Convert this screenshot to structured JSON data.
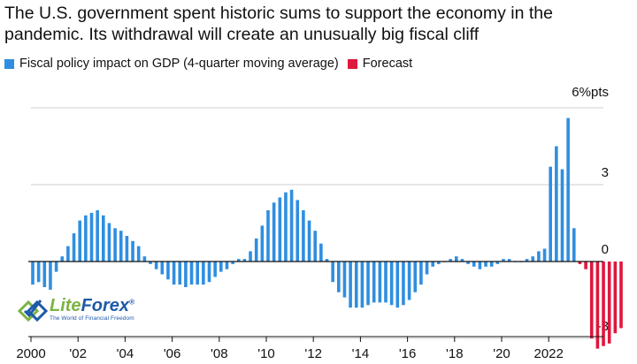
{
  "title": "The U.S. government spent historic sums to support the economy in the pandemic. Its withdrawal will create an unusually big fiscal cliff",
  "legend": [
    {
      "label": "Fiscal policy impact on GDP (4-quarter moving average)",
      "color": "#2f8ee0"
    },
    {
      "label": "Forecast",
      "color": "#e0163c"
    }
  ],
  "logo": {
    "name_part1": "Lite",
    "name_part2": "Forex",
    "registered": "®",
    "tagline": "The World of Financial Freedom"
  },
  "chart_data": {
    "type": "bar",
    "title": "The U.S. government spent historic sums to support the economy in the pandemic. Its withdrawal will create an unusually big fiscal cliff",
    "ylabel": "",
    "ylim": [
      -3.3,
      6.5
    ],
    "grid": true,
    "legend_position": "top-left",
    "y_ticks": [
      {
        "value": 6,
        "label": "6%pts"
      },
      {
        "value": 3,
        "label": "3"
      },
      {
        "value": 0,
        "label": "0"
      },
      {
        "value": -3,
        "label": "-3"
      }
    ],
    "x_ticks": [
      {
        "year": 2000,
        "label": "2000"
      },
      {
        "year": 2002,
        "label": "'02"
      },
      {
        "year": 2004,
        "label": "'04"
      },
      {
        "year": 2006,
        "label": "'06"
      },
      {
        "year": 2008,
        "label": "'08"
      },
      {
        "year": 2010,
        "label": "'10"
      },
      {
        "year": 2012,
        "label": "'12"
      },
      {
        "year": 2014,
        "label": "'14"
      },
      {
        "year": 2016,
        "label": "'16"
      },
      {
        "year": 2018,
        "label": "'18"
      },
      {
        "year": 2020,
        "label": "'20"
      },
      {
        "year": 2022,
        "label": "2022"
      }
    ],
    "start_year": 2000,
    "series": [
      {
        "name": "Fiscal policy impact on GDP (4-quarter moving average)",
        "color": "#2f8ee0",
        "values": [
          -0.9,
          -0.8,
          -1.0,
          -1.1,
          -0.4,
          0.2,
          0.6,
          1.1,
          1.6,
          1.8,
          1.9,
          2.0,
          1.8,
          1.5,
          1.3,
          1.2,
          1.0,
          0.8,
          0.6,
          0.2,
          -0.1,
          -0.3,
          -0.5,
          -0.7,
          -0.9,
          -0.9,
          -1.0,
          -0.9,
          -0.9,
          -0.9,
          -0.8,
          -0.6,
          -0.4,
          -0.3,
          -0.1,
          0.1,
          0.1,
          0.4,
          0.9,
          1.4,
          2.0,
          2.3,
          2.5,
          2.7,
          2.8,
          2.4,
          2.0,
          1.6,
          1.2,
          0.7,
          0.1,
          -0.8,
          -1.2,
          -1.4,
          -1.8,
          -1.8,
          -1.8,
          -1.7,
          -1.6,
          -1.6,
          -1.6,
          -1.7,
          -1.8,
          -1.7,
          -1.5,
          -1.2,
          -0.9,
          -0.5,
          -0.2,
          -0.1,
          0.0,
          0.1,
          0.2,
          0.1,
          -0.1,
          -0.2,
          -0.3,
          -0.2,
          -0.2,
          -0.1,
          0.1,
          0.1,
          0.0,
          0.0,
          0.1,
          0.2,
          0.4,
          0.5,
          3.7,
          4.5,
          3.6,
          5.6,
          1.3
        ]
      },
      {
        "name": "Forecast",
        "color": "#e0163c",
        "values": [
          -0.1,
          -0.3,
          -3.0,
          -3.4,
          -3.3,
          -3.2,
          -2.8,
          -2.6
        ]
      }
    ]
  }
}
